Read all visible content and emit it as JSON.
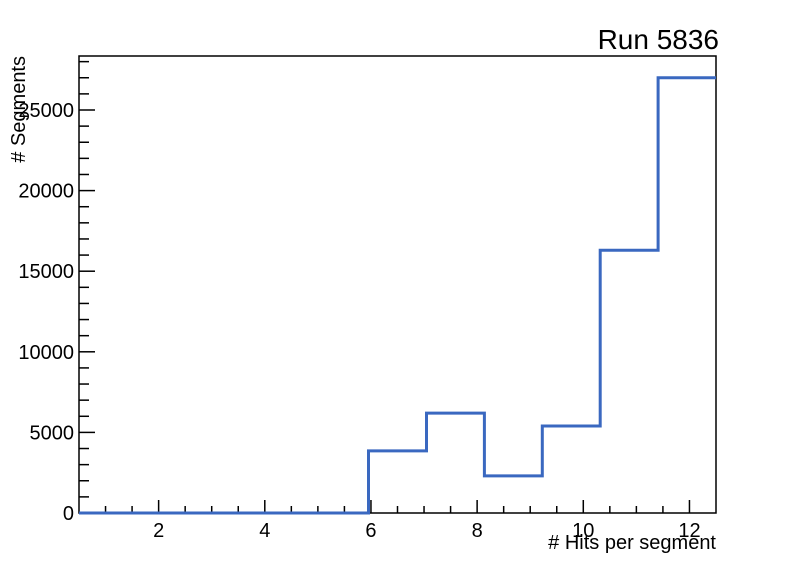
{
  "chart_data": {
    "type": "histogram-step",
    "title": "Run 5836",
    "xlabel": "# Hits per segment",
    "ylabel": "# Segments",
    "xlim": [
      0.5,
      12.5
    ],
    "ylim": [
      0,
      28350
    ],
    "x_major_ticks": [
      2,
      4,
      6,
      8,
      10,
      12
    ],
    "x_minor_step": 0.5,
    "y_major_ticks": [
      0,
      5000,
      10000,
      15000,
      20000,
      25000
    ],
    "y_minor_step": 1000,
    "bin_edges": [
      0.5,
      1.5909,
      2.6818,
      3.7727,
      4.8636,
      5.9545,
      7.0455,
      8.1364,
      9.2273,
      10.3182,
      11.4091,
      12.5
    ],
    "counts": [
      0,
      0,
      0,
      0,
      0,
      3850,
      6200,
      2300,
      5400,
      16300,
      27000
    ],
    "grid": "off",
    "legend": "none",
    "line_color": "#3a68c0",
    "axis_color": "#000000",
    "background_color": "#ffffff"
  }
}
